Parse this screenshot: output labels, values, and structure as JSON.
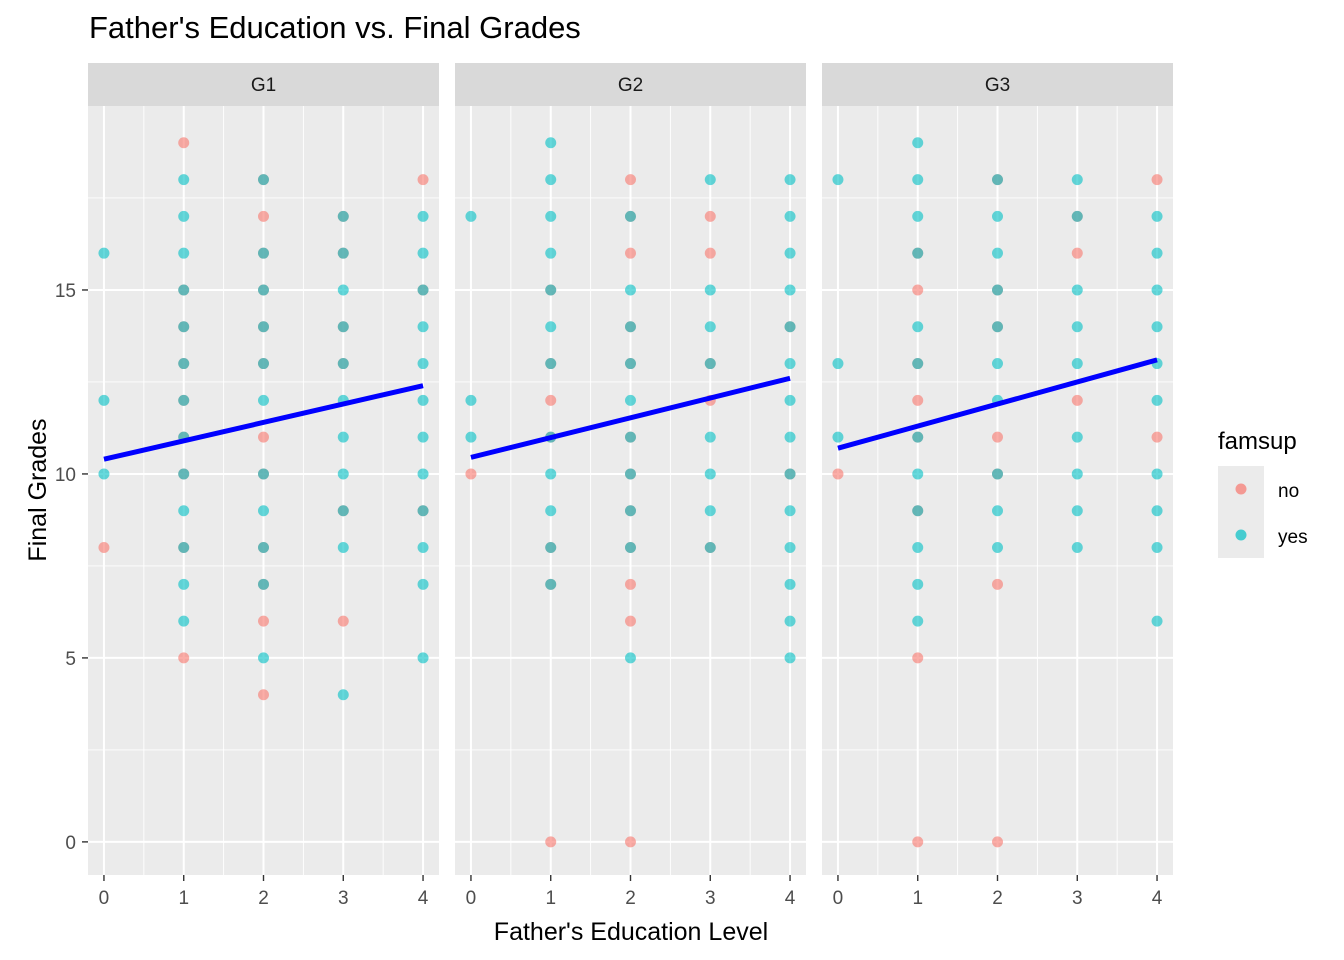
{
  "chart_data": {
    "type": "scatter",
    "title": "Father's Education vs. Final Grades",
    "xlabel": "Father's Education Level",
    "ylabel": "Final Grades",
    "xlim": [
      -0.2,
      4.2
    ],
    "ylim": [
      -0.9,
      20.0
    ],
    "x_ticks": [
      0,
      1,
      2,
      3,
      4
    ],
    "x_tick_labels": [
      "0",
      "1",
      "2",
      "3",
      "4"
    ],
    "y_ticks": [
      0,
      5,
      10,
      15
    ],
    "y_tick_labels": [
      "0",
      "5",
      "10",
      "15"
    ],
    "grid": true,
    "legend": {
      "title": "famsup",
      "position": "right",
      "entries": [
        {
          "label": "no",
          "color": "#F8766D"
        },
        {
          "label": "yes",
          "color": "#00BFC4"
        }
      ]
    },
    "trend_color": "#0000FF",
    "panels": [
      {
        "label": "G1",
        "trend": {
          "x": [
            0,
            4
          ],
          "y": [
            10.4,
            12.4
          ]
        },
        "points": {
          "no": [
            [
              0,
              8
            ],
            [
              1,
              19
            ],
            [
              1,
              15
            ],
            [
              1,
              14
            ],
            [
              1,
              13
            ],
            [
              1,
              12
            ],
            [
              1,
              11
            ],
            [
              1,
              10
            ],
            [
              1,
              8
            ],
            [
              1,
              5
            ],
            [
              2,
              18
            ],
            [
              2,
              17
            ],
            [
              2,
              16
            ],
            [
              2,
              15
            ],
            [
              2,
              14
            ],
            [
              2,
              13
            ],
            [
              2,
              11
            ],
            [
              2,
              10
            ],
            [
              2,
              8
            ],
            [
              2,
              7
            ],
            [
              2,
              6
            ],
            [
              2,
              4
            ],
            [
              3,
              17
            ],
            [
              3,
              16
            ],
            [
              3,
              14
            ],
            [
              3,
              13
            ],
            [
              3,
              9
            ],
            [
              3,
              6
            ],
            [
              4,
              18
            ],
            [
              4,
              15
            ],
            [
              4,
              9
            ]
          ],
          "yes": [
            [
              0,
              16
            ],
            [
              0,
              12
            ],
            [
              0,
              10
            ],
            [
              1,
              18
            ],
            [
              1,
              17
            ],
            [
              1,
              16
            ],
            [
              1,
              15
            ],
            [
              1,
              14
            ],
            [
              1,
              13
            ],
            [
              1,
              12
            ],
            [
              1,
              11
            ],
            [
              1,
              10
            ],
            [
              1,
              9
            ],
            [
              1,
              8
            ],
            [
              1,
              7
            ],
            [
              1,
              6
            ],
            [
              2,
              18
            ],
            [
              2,
              16
            ],
            [
              2,
              15
            ],
            [
              2,
              14
            ],
            [
              2,
              13
            ],
            [
              2,
              12
            ],
            [
              2,
              10
            ],
            [
              2,
              9
            ],
            [
              2,
              8
            ],
            [
              2,
              7
            ],
            [
              2,
              5
            ],
            [
              3,
              17
            ],
            [
              3,
              16
            ],
            [
              3,
              15
            ],
            [
              3,
              14
            ],
            [
              3,
              13
            ],
            [
              3,
              12
            ],
            [
              3,
              11
            ],
            [
              3,
              10
            ],
            [
              3,
              9
            ],
            [
              3,
              8
            ],
            [
              3,
              4
            ],
            [
              4,
              17
            ],
            [
              4,
              16
            ],
            [
              4,
              15
            ],
            [
              4,
              14
            ],
            [
              4,
              13
            ],
            [
              4,
              12
            ],
            [
              4,
              11
            ],
            [
              4,
              10
            ],
            [
              4,
              9
            ],
            [
              4,
              8
            ],
            [
              4,
              7
            ],
            [
              4,
              5
            ]
          ]
        }
      },
      {
        "label": "G2",
        "trend": {
          "x": [
            0,
            4
          ],
          "y": [
            10.45,
            12.6
          ]
        },
        "points": {
          "no": [
            [
              0,
              10
            ],
            [
              1,
              15
            ],
            [
              1,
              13
            ],
            [
              1,
              12
            ],
            [
              1,
              11
            ],
            [
              1,
              8
            ],
            [
              1,
              7
            ],
            [
              1,
              0
            ],
            [
              2,
              18
            ],
            [
              2,
              17
            ],
            [
              2,
              16
            ],
            [
              2,
              14
            ],
            [
              2,
              13
            ],
            [
              2,
              11
            ],
            [
              2,
              10
            ],
            [
              2,
              9
            ],
            [
              2,
              8
            ],
            [
              2,
              7
            ],
            [
              2,
              6
            ],
            [
              2,
              0
            ],
            [
              3,
              17
            ],
            [
              3,
              16
            ],
            [
              3,
              13
            ],
            [
              3,
              12
            ],
            [
              3,
              8
            ],
            [
              4,
              14
            ],
            [
              4,
              10
            ]
          ],
          "yes": [
            [
              0,
              17
            ],
            [
              0,
              12
            ],
            [
              0,
              11
            ],
            [
              1,
              19
            ],
            [
              1,
              18
            ],
            [
              1,
              17
            ],
            [
              1,
              16
            ],
            [
              1,
              15
            ],
            [
              1,
              14
            ],
            [
              1,
              13
            ],
            [
              1,
              11
            ],
            [
              1,
              10
            ],
            [
              1,
              9
            ],
            [
              1,
              8
            ],
            [
              1,
              7
            ],
            [
              2,
              17
            ],
            [
              2,
              15
            ],
            [
              2,
              14
            ],
            [
              2,
              13
            ],
            [
              2,
              12
            ],
            [
              2,
              11
            ],
            [
              2,
              10
            ],
            [
              2,
              9
            ],
            [
              2,
              8
            ],
            [
              2,
              5
            ],
            [
              3,
              18
            ],
            [
              3,
              15
            ],
            [
              3,
              14
            ],
            [
              3,
              13
            ],
            [
              3,
              11
            ],
            [
              3,
              10
            ],
            [
              3,
              9
            ],
            [
              3,
              8
            ],
            [
              4,
              18
            ],
            [
              4,
              17
            ],
            [
              4,
              16
            ],
            [
              4,
              15
            ],
            [
              4,
              14
            ],
            [
              4,
              13
            ],
            [
              4,
              12
            ],
            [
              4,
              11
            ],
            [
              4,
              10
            ],
            [
              4,
              9
            ],
            [
              4,
              8
            ],
            [
              4,
              7
            ],
            [
              4,
              6
            ],
            [
              4,
              5
            ]
          ]
        }
      },
      {
        "label": "G3",
        "trend": {
          "x": [
            0,
            4
          ],
          "y": [
            10.7,
            13.1
          ]
        },
        "points": {
          "no": [
            [
              0,
              10
            ],
            [
              1,
              16
            ],
            [
              1,
              15
            ],
            [
              1,
              13
            ],
            [
              1,
              12
            ],
            [
              1,
              11
            ],
            [
              1,
              9
            ],
            [
              1,
              5
            ],
            [
              1,
              0
            ],
            [
              2,
              18
            ],
            [
              2,
              15
            ],
            [
              2,
              14
            ],
            [
              2,
              11
            ],
            [
              2,
              10
            ],
            [
              2,
              7
            ],
            [
              2,
              0
            ],
            [
              3,
              17
            ],
            [
              3,
              16
            ],
            [
              3,
              12
            ],
            [
              4,
              18
            ],
            [
              4,
              11
            ]
          ],
          "yes": [
            [
              0,
              18
            ],
            [
              0,
              13
            ],
            [
              0,
              11
            ],
            [
              1,
              19
            ],
            [
              1,
              18
            ],
            [
              1,
              17
            ],
            [
              1,
              16
            ],
            [
              1,
              14
            ],
            [
              1,
              13
            ],
            [
              1,
              11
            ],
            [
              1,
              10
            ],
            [
              1,
              9
            ],
            [
              1,
              8
            ],
            [
              1,
              7
            ],
            [
              1,
              6
            ],
            [
              2,
              18
            ],
            [
              2,
              17
            ],
            [
              2,
              16
            ],
            [
              2,
              15
            ],
            [
              2,
              14
            ],
            [
              2,
              13
            ],
            [
              2,
              12
            ],
            [
              2,
              10
            ],
            [
              2,
              9
            ],
            [
              2,
              8
            ],
            [
              3,
              18
            ],
            [
              3,
              17
            ],
            [
              3,
              15
            ],
            [
              3,
              14
            ],
            [
              3,
              13
            ],
            [
              3,
              11
            ],
            [
              3,
              10
            ],
            [
              3,
              9
            ],
            [
              3,
              8
            ],
            [
              4,
              17
            ],
            [
              4,
              16
            ],
            [
              4,
              15
            ],
            [
              4,
              14
            ],
            [
              4,
              13
            ],
            [
              4,
              12
            ],
            [
              4,
              10
            ],
            [
              4,
              9
            ],
            [
              4,
              8
            ],
            [
              4,
              6
            ]
          ]
        }
      }
    ]
  }
}
